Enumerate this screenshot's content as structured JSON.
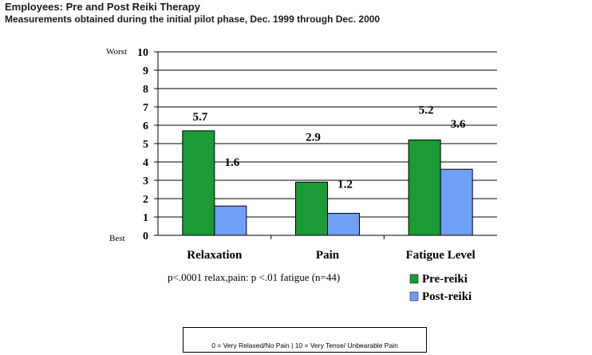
{
  "title": "Employees: Pre and Post Reiki Therapy",
  "subtitle": "Measurements obtained during the initial pilot phase, Dec. 1999 through Dec. 2000",
  "footnote": "0 = Very Relaxed/No Pain  |  10 = Very Tense/ Unbearable Pain",
  "colors": {
    "pre": "#1b9a35",
    "post": "#6f9ff7"
  },
  "chart_data": {
    "type": "bar",
    "categories": [
      "Relaxation",
      "Pain",
      "Fatigue Level"
    ],
    "series": [
      {
        "name": "Pre-reiki",
        "values": [
          5.7,
          2.9,
          5.2
        ]
      },
      {
        "name": "Post-reiki",
        "values": [
          1.6,
          1.2,
          3.6
        ]
      }
    ],
    "data_labels": [
      [
        "5.7",
        "2.9",
        "5.2"
      ],
      [
        "1.6",
        "1.2",
        "3.6"
      ]
    ],
    "ylim": [
      0,
      10
    ],
    "yticks": [
      0,
      1,
      2,
      3,
      4,
      5,
      6,
      7,
      8,
      9,
      10
    ],
    "ytick_labels": [
      "0",
      "1",
      "2",
      "3",
      "4",
      "5",
      "6",
      "7",
      "8",
      "9",
      "10"
    ],
    "y_top_label": "Worst",
    "y_bottom_label": "Best",
    "annotation": "p<.0001 relax,pain: p <.01 fatigue (n=44)",
    "legend_position": "bottom-right",
    "grid": true
  }
}
